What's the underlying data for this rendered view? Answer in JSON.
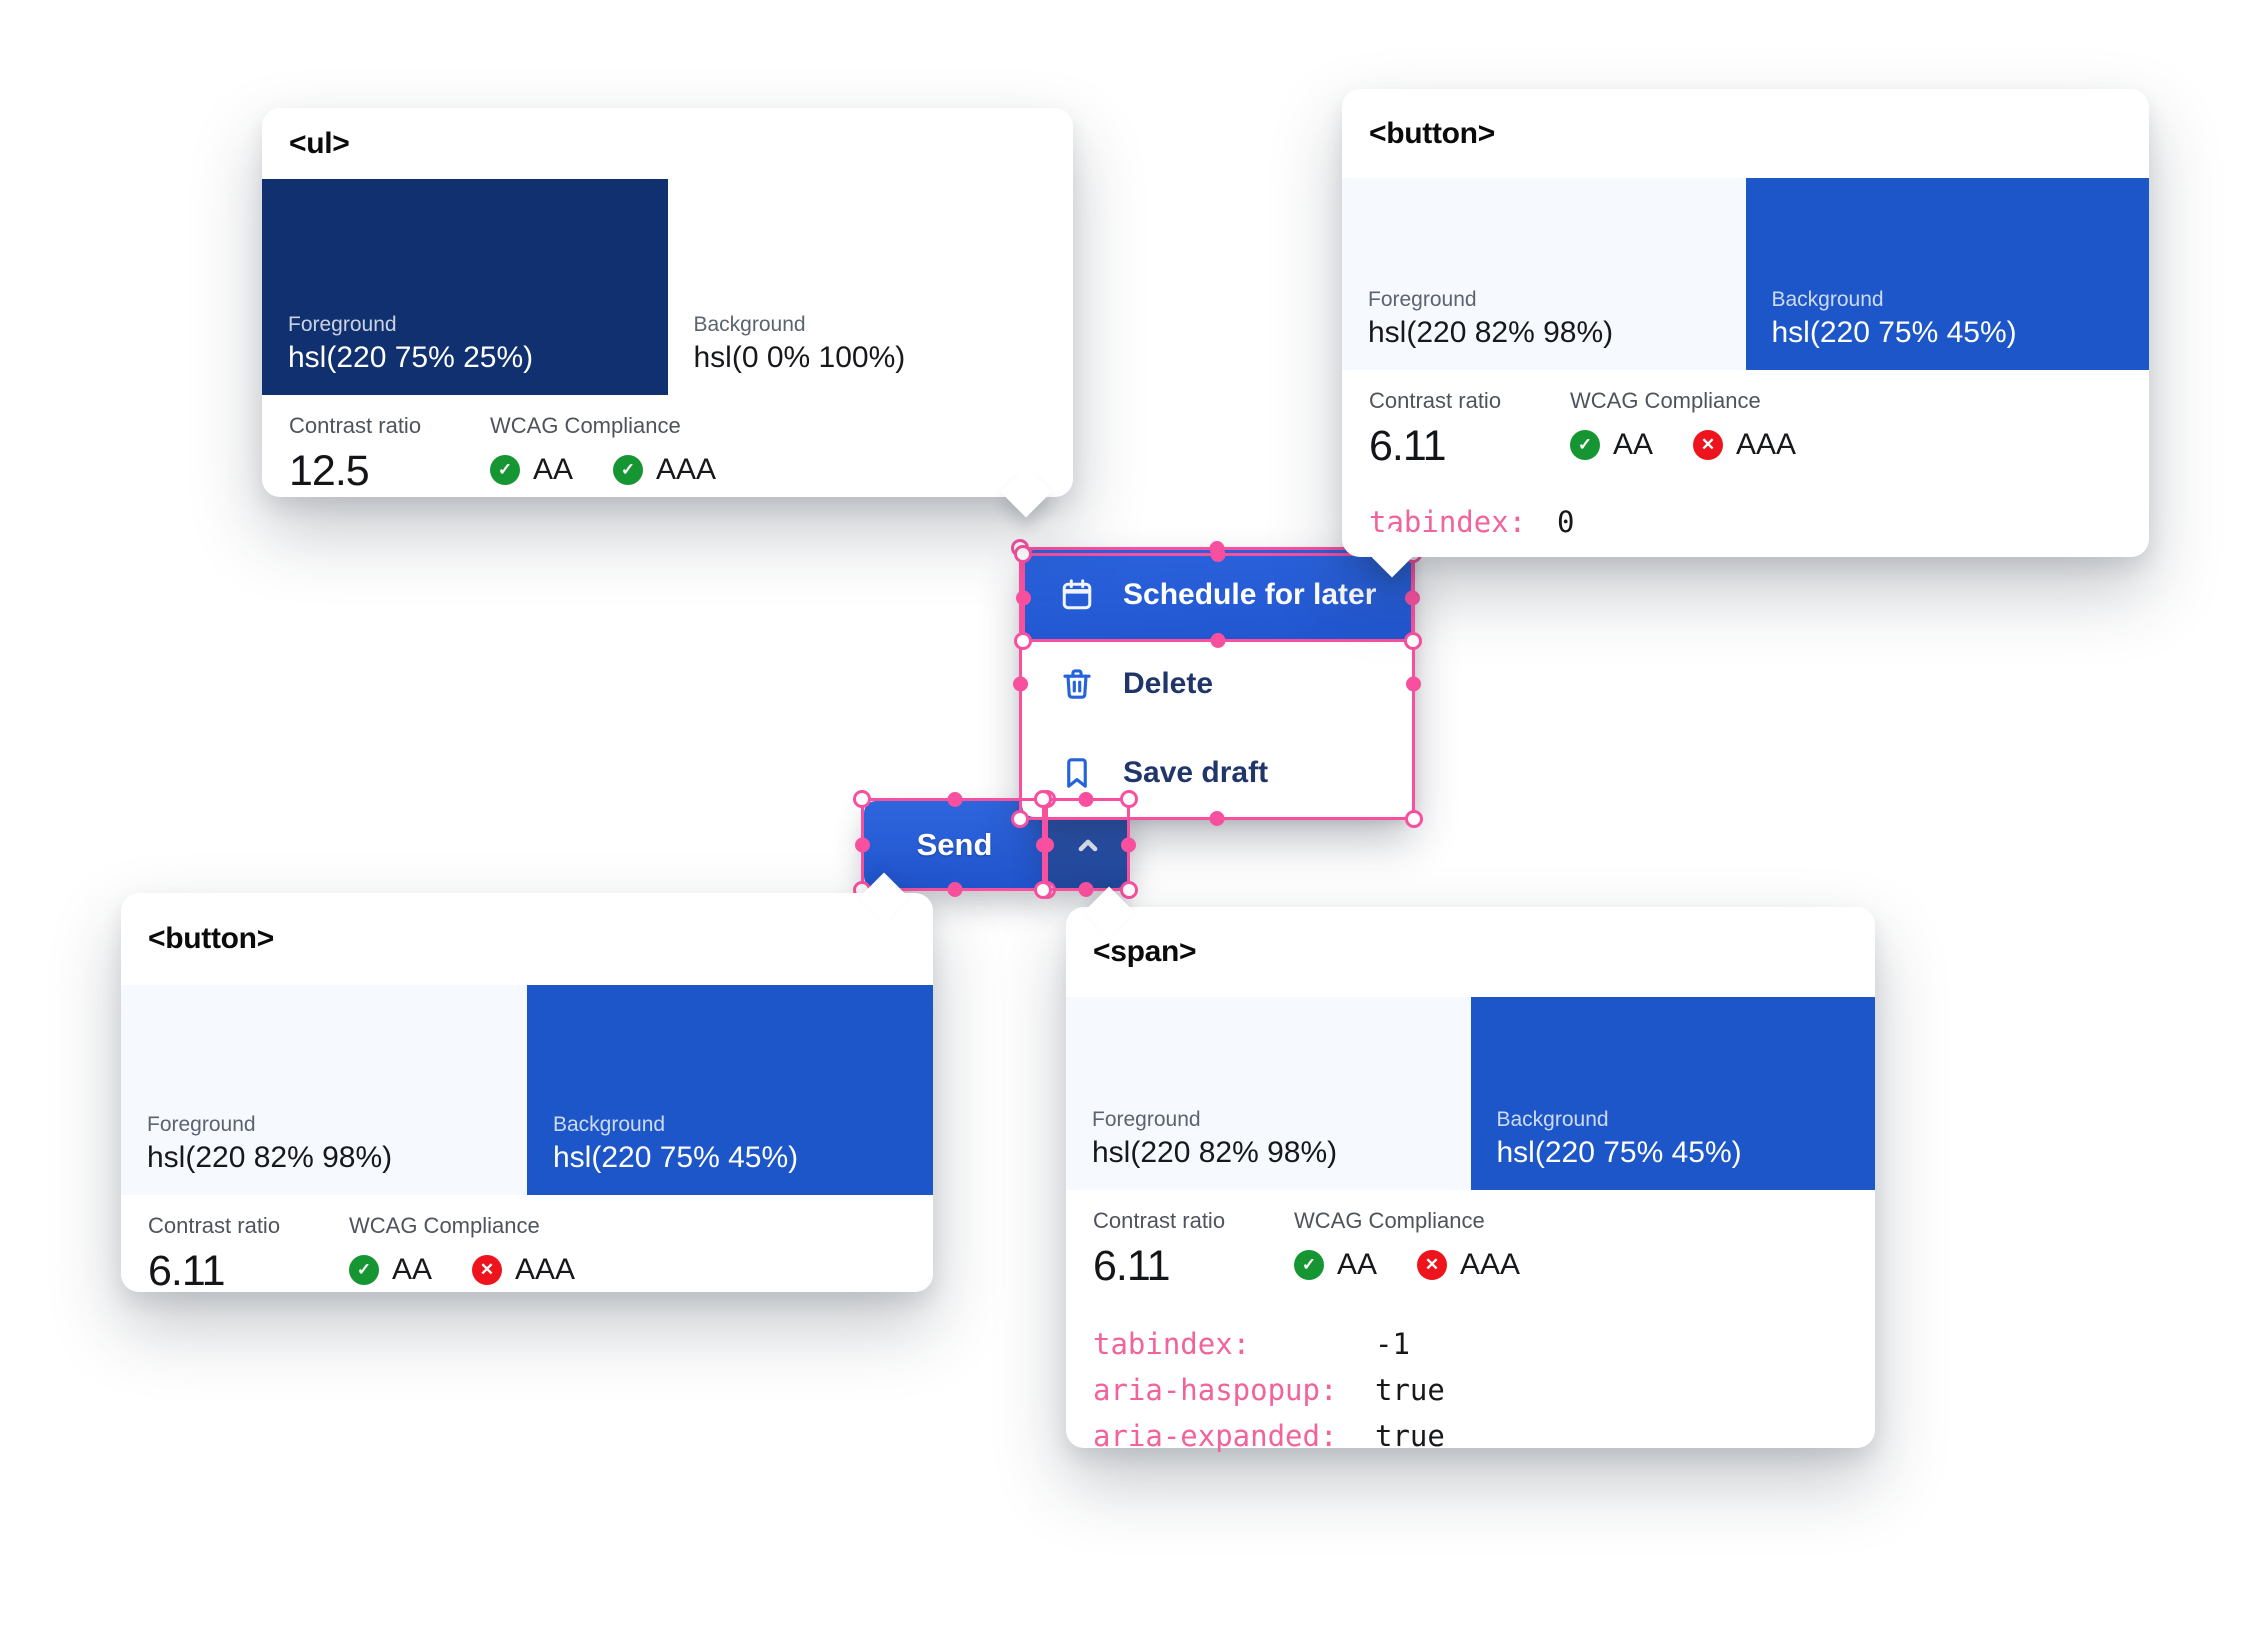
{
  "colors": {
    "accent_blue": "hsl(220 75% 45%)",
    "selected_row_blue": "#2a62dc",
    "expanded_chevron_blue": "#27509f",
    "dark_navy": "hsl(220 75% 25%)",
    "light_foreground": "hsl(220 82% 98%)",
    "overlay_pink": "#f8509e",
    "attribute_pink": "#f2639c",
    "pass_green": "#169632",
    "fail_red": "#ee141e",
    "menu_text_navy": "#20366b"
  },
  "split_button": {
    "label": "Send",
    "chevron_icon": "chevron-up-icon"
  },
  "menu": {
    "items": [
      {
        "label": "Schedule for later",
        "icon": "calendar-icon",
        "selected": true
      },
      {
        "label": "Delete",
        "icon": "trash-icon",
        "selected": false
      },
      {
        "label": "Save draft",
        "icon": "bookmark-icon",
        "selected": false
      }
    ]
  },
  "cards": {
    "ul_card": {
      "tag": "<ul>",
      "foreground": {
        "label": "Foreground",
        "value": "hsl(220 75% 25%)"
      },
      "background": {
        "label": "Background",
        "value": "hsl(0 0% 100%)"
      },
      "contrast": {
        "label": "Contrast ratio",
        "value": "12.5"
      },
      "wcag": {
        "label": "WCAG Compliance",
        "badges": [
          {
            "level": "AA",
            "status": "pass"
          },
          {
            "level": "AAA",
            "status": "pass"
          }
        ]
      },
      "attributes": []
    },
    "button_top_card": {
      "tag": "<button>",
      "foreground": {
        "label": "Foreground",
        "value": "hsl(220 82% 98%)"
      },
      "background": {
        "label": "Background",
        "value": "hsl(220 75% 45%)"
      },
      "contrast": {
        "label": "Contrast ratio",
        "value": "6.11"
      },
      "wcag": {
        "label": "WCAG Compliance",
        "badges": [
          {
            "level": "AA",
            "status": "pass"
          },
          {
            "level": "AAA",
            "status": "fail"
          }
        ]
      },
      "attributes": [
        {
          "name": "tabindex:",
          "value": "0"
        }
      ]
    },
    "button_bottom_card": {
      "tag": "<button>",
      "foreground": {
        "label": "Foreground",
        "value": "hsl(220 82% 98%)"
      },
      "background": {
        "label": "Background",
        "value": "hsl(220 75% 45%)"
      },
      "contrast": {
        "label": "Contrast ratio",
        "value": "6.11"
      },
      "wcag": {
        "label": "WCAG Compliance",
        "badges": [
          {
            "level": "AA",
            "status": "pass"
          },
          {
            "level": "AAA",
            "status": "fail"
          }
        ]
      },
      "attributes": []
    },
    "span_card": {
      "tag": "<span>",
      "foreground": {
        "label": "Foreground",
        "value": "hsl(220 82% 98%)"
      },
      "background": {
        "label": "Background",
        "value": "hsl(220 75% 45%)"
      },
      "contrast": {
        "label": "Contrast ratio",
        "value": "6.11"
      },
      "wcag": {
        "label": "WCAG Compliance",
        "badges": [
          {
            "level": "AA",
            "status": "pass"
          },
          {
            "level": "AAA",
            "status": "fail"
          }
        ]
      },
      "attributes": [
        {
          "name": "tabindex:",
          "value": "-1"
        },
        {
          "name": "aria-haspopup:",
          "value": "true"
        },
        {
          "name": "aria-expanded:",
          "value": "true"
        }
      ]
    }
  }
}
